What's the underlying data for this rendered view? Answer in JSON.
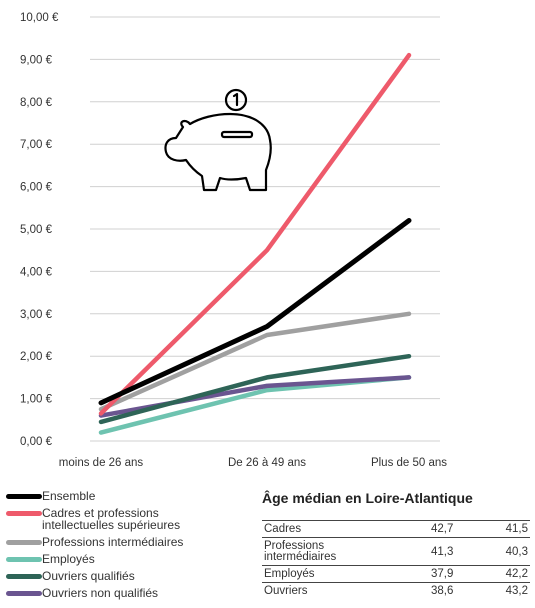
{
  "chart_data": {
    "type": "line",
    "categories": [
      "moins de 26 ans",
      "De 26 à 49 ans",
      "Plus de 50 ans"
    ],
    "ylim": [
      0,
      10
    ],
    "y_ticks": [
      "0,00 €",
      "1,00 €",
      "2,00 €",
      "3,00 €",
      "4,00 €",
      "5,00  €",
      "6,00 €",
      "7,00 €",
      "8,00 €",
      "9,00 €",
      "10,00 €"
    ],
    "grid": true,
    "legend_position": "bottom-left",
    "series": [
      {
        "name": "Ensemble",
        "color": "#000000",
        "values": [
          0.9,
          2.7,
          5.2
        ]
      },
      {
        "name": "Cadres et professions\nintellectuelles supérieures",
        "color": "#ee5a6b",
        "values": [
          0.65,
          4.5,
          9.1
        ]
      },
      {
        "name": "Professions intermédiaires",
        "color": "#a0a0a0",
        "values": [
          0.75,
          2.5,
          3.0
        ]
      },
      {
        "name": "Employés",
        "color": "#6ec3b0",
        "values": [
          0.2,
          1.2,
          1.5
        ]
      },
      {
        "name": "Ouvriers qualifiés",
        "color": "#2e6457",
        "values": [
          0.45,
          1.5,
          2.0
        ]
      },
      {
        "name": "Ouvriers non qualifiés",
        "color": "#6a5590",
        "values": [
          0.6,
          1.3,
          1.5
        ]
      }
    ]
  },
  "piggy_icon": "piggy-bank-icon",
  "table": {
    "title": "Âge médian en Loire-Atlantique",
    "rows": [
      {
        "label": "Cadres",
        "v1": "42,7",
        "v2": "41,5"
      },
      {
        "label": "Professions\nintermédiaires",
        "v1": "41,3",
        "v2": "40,3"
      },
      {
        "label": "Employés",
        "v1": "37,9",
        "v2": "42,2"
      },
      {
        "label": "Ouvriers",
        "v1": "38,6",
        "v2": "43,2"
      }
    ]
  }
}
